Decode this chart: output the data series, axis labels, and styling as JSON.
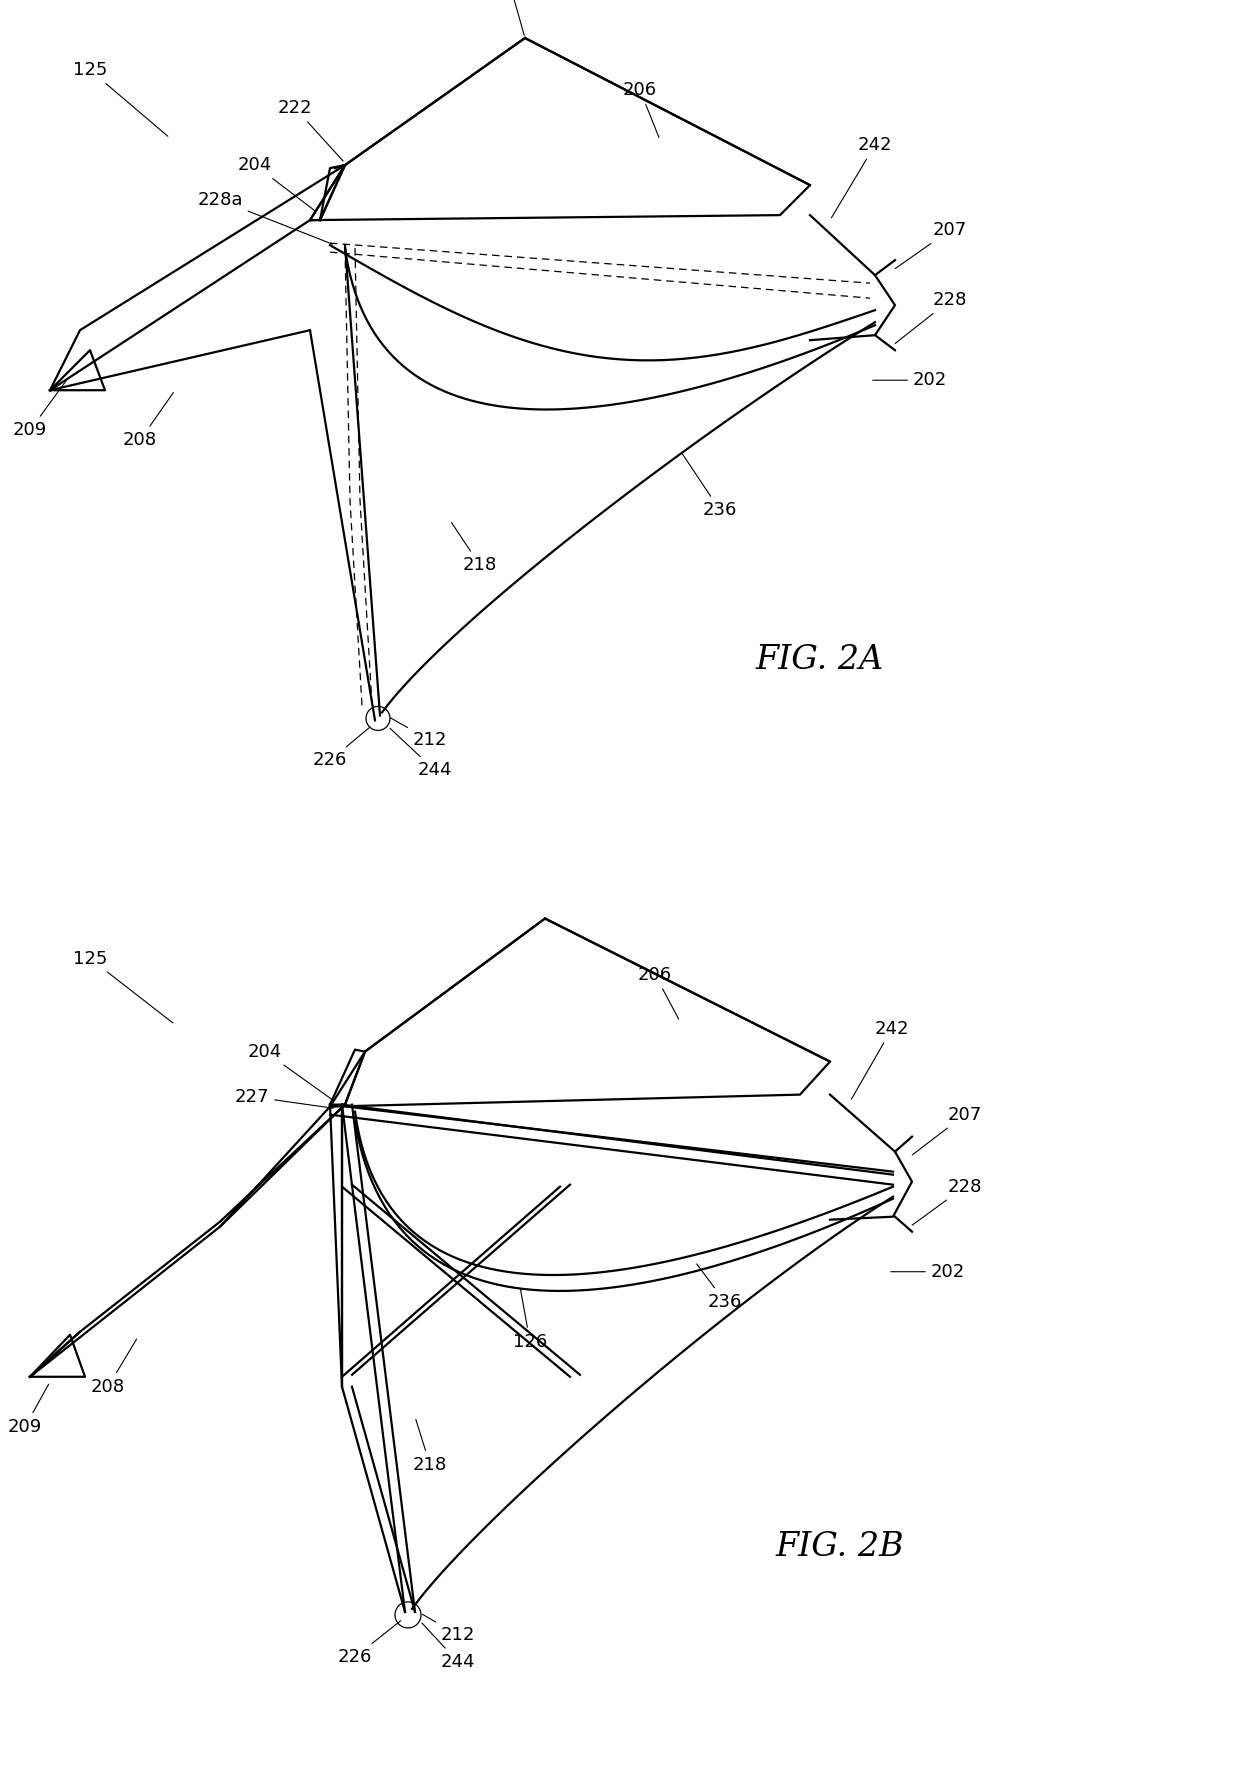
{
  "fig_width": 12.4,
  "fig_height": 17.73,
  "bg_color": "#ffffff",
  "line_color": "#000000",
  "lw": 1.6,
  "lw_thin": 0.9,
  "fig2a_title": "FIG. 2A",
  "fig2b_title": "FIG. 2B",
  "title_fontsize": 24,
  "label_fontsize": 13
}
